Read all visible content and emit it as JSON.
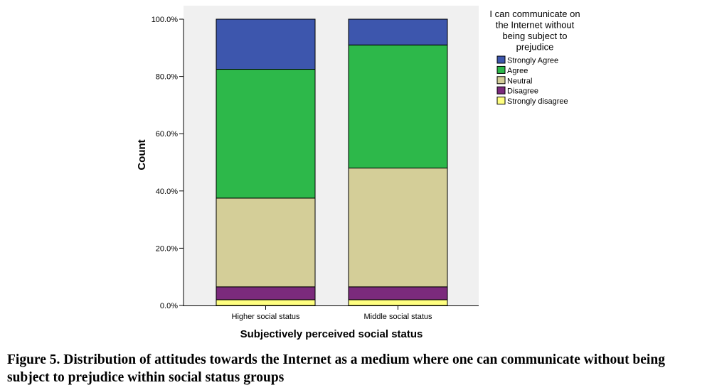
{
  "chart_data": {
    "type": "bar",
    "stacked": true,
    "categories": [
      "Higher social status",
      "Middle social status"
    ],
    "series": [
      {
        "name": "Strongly disagree",
        "color": "#ffff80",
        "values": [
          2.0,
          2.0
        ]
      },
      {
        "name": "Disagree",
        "color": "#7b2a7c",
        "values": [
          4.5,
          4.5
        ]
      },
      {
        "name": "Neutral",
        "color": "#d4ce98",
        "values": [
          31.0,
          41.5
        ]
      },
      {
        "name": "Agree",
        "color": "#2db84a",
        "values": [
          45.0,
          43.0
        ]
      },
      {
        "name": "Strongly Agree",
        "color": "#3d56ad",
        "values": [
          17.5,
          9.0
        ]
      }
    ],
    "xlabel": "Subjectively perceived social status",
    "ylabel": "Count",
    "ylim": [
      0,
      100
    ],
    "yticks": [
      "0.0%",
      "20.0%",
      "40.0%",
      "60.0%",
      "80.0%",
      "100.0%"
    ],
    "legend_title": "I can communicate on the Internet without being subject to prejudice",
    "legend_title_lines": [
      "I can communicate on",
      "the Internet without",
      "being subject to",
      "prejudice"
    ],
    "legend_order": [
      "Strongly Agree",
      "Agree",
      "Neutral",
      "Disagree",
      "Strongly disagree"
    ],
    "legend_position": "right",
    "plot_background": "#f0f0f0",
    "grid": false
  },
  "caption": "Figure 5. Distribution of attitudes towards the Internet as a medium where one can communicate without being subject to prejudice within social status groups"
}
